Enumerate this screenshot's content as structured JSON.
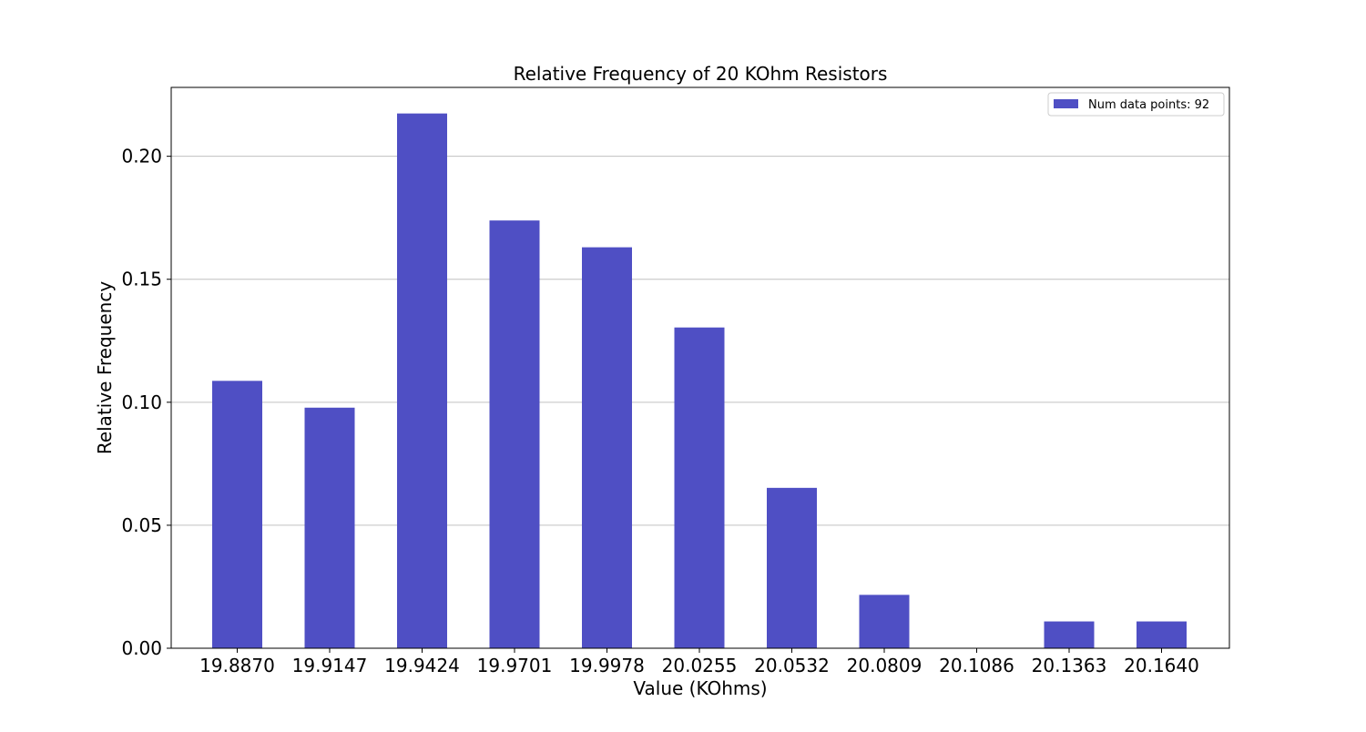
{
  "chart_data": {
    "type": "bar",
    "title": "Relative Frequency of 20 KOhm Resistors",
    "xlabel": "Value (KOhms)",
    "ylabel": "Relative Frequency",
    "categories": [
      "19.8870",
      "19.9147",
      "19.9424",
      "19.9701",
      "19.9978",
      "20.0255",
      "20.0532",
      "20.0809",
      "20.1086",
      "20.1363",
      "20.1640"
    ],
    "series": [
      {
        "name": "Num data points: 92",
        "color": "#4f4fc4",
        "values": [
          0.1087,
          0.0978,
          0.2174,
          0.1739,
          0.163,
          0.1304,
          0.0652,
          0.0217,
          0.0,
          0.0109,
          0.0109
        ]
      }
    ],
    "ylim": [
      0,
      0.228
    ],
    "yticks": [
      "0.00",
      "0.05",
      "0.10",
      "0.15",
      "0.20"
    ],
    "ytick_values": [
      0,
      0.05,
      0.1,
      0.15,
      0.2
    ],
    "grid": "horizontal",
    "legend_position": "top-right"
  }
}
